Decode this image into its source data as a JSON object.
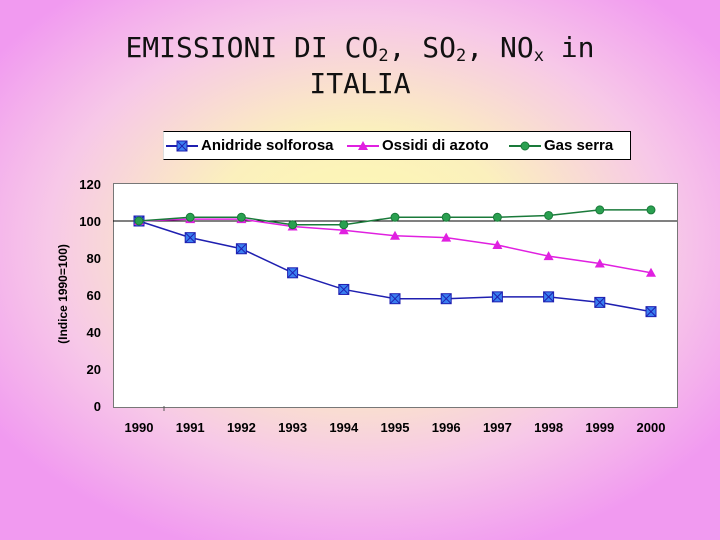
{
  "title": {
    "line1_prefix": "EMISSIONI DI CO",
    "line1_sub1": "2",
    "line1_mid1": ", SO",
    "line1_sub2": "2",
    "line1_mid2": ", NO",
    "line1_sub3": "x",
    "line1_suffix": " in",
    "line2": "ITALIA"
  },
  "colors": {
    "anidride": "#1f1fb0",
    "anidride_marker": "#3a7ff0",
    "ossidi": "#e020e0",
    "gas": "#1a7a3a",
    "gas_marker": "#2aa050"
  },
  "chart_data": {
    "type": "line",
    "title": "EMISSIONI DI CO2, SO2, NOx in ITALIA",
    "xlabel": "",
    "ylabel": "(Indice 1990=100)",
    "ylim": [
      0,
      120
    ],
    "yticks": [
      "0",
      "20",
      "40",
      "60",
      "80",
      "100",
      "120"
    ],
    "x": [
      "1990",
      "1991",
      "1992",
      "1993",
      "1994",
      "1995",
      "1996",
      "1997",
      "1998",
      "1999",
      "2000"
    ],
    "reference_line": 100,
    "legend_position": "top",
    "series": [
      {
        "name": "Anidride solforosa",
        "marker": "square-x",
        "values": [
          100,
          91,
          85,
          72,
          63,
          58,
          58,
          59,
          59,
          56,
          51
        ]
      },
      {
        "name": "Ossidi di azoto",
        "marker": "triangle",
        "values": [
          100,
          101,
          101,
          97,
          95,
          92,
          91,
          87,
          81,
          77,
          72
        ]
      },
      {
        "name": "Gas serra",
        "marker": "circle",
        "values": [
          100,
          102,
          102,
          98,
          98,
          102,
          102,
          102,
          103,
          106,
          106
        ]
      }
    ]
  }
}
